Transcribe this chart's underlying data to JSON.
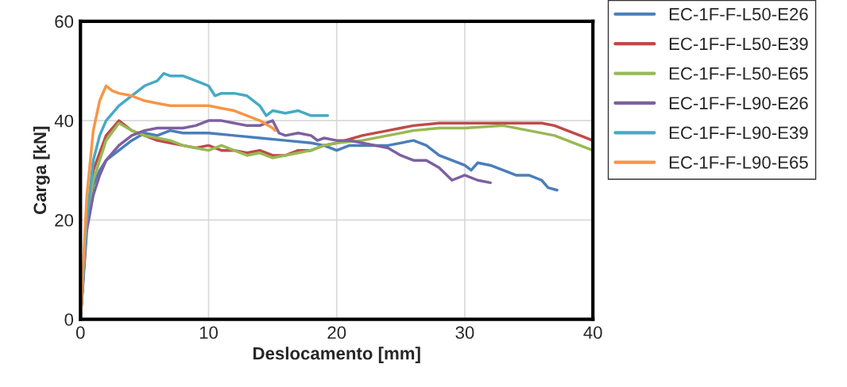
{
  "chart_data": {
    "type": "line",
    "xlabel": "Deslocamento [mm]",
    "ylabel": "Carga [kN]",
    "xlim": [
      0,
      40
    ],
    "ylim": [
      0,
      60
    ],
    "xticks": [
      0,
      10,
      20,
      30,
      40
    ],
    "yticks": [
      0,
      20,
      40,
      60
    ],
    "grid": true,
    "legend": "right",
    "marker": "none",
    "line_style": "solid",
    "series": [
      {
        "name": "EC-1F-F-L50-E26",
        "color": "#4a7ebb",
        "x": [
          0,
          0.5,
          1,
          1.5,
          2,
          3,
          4,
          5,
          6,
          7,
          8,
          10,
          12,
          14,
          16,
          18,
          19,
          20,
          21,
          22,
          24,
          26,
          27,
          28,
          29,
          30,
          30.5,
          31,
          32,
          34,
          35,
          36,
          36.5,
          37.2
        ],
        "values": [
          0,
          20,
          27,
          30,
          32,
          34,
          36,
          37.5,
          37,
          38,
          37.5,
          37.5,
          37,
          36.5,
          36,
          35.5,
          35,
          34,
          35,
          35,
          35,
          36,
          35,
          33,
          32,
          31,
          30,
          31.5,
          31,
          29,
          29,
          28,
          26.5,
          26
        ]
      },
      {
        "name": "EC-1F-F-L50-E39",
        "color": "#be4b48",
        "x": [
          0,
          0.5,
          1,
          2,
          3,
          4,
          5,
          6,
          7,
          8,
          9,
          10,
          11,
          12,
          13,
          14,
          15,
          16,
          17,
          18,
          19,
          20,
          22,
          24,
          26,
          28,
          30,
          32,
          34,
          36,
          37,
          38,
          40
        ],
        "values": [
          0,
          20,
          30,
          37,
          40,
          38,
          37,
          36,
          35.5,
          35,
          34.5,
          35,
          34,
          34,
          33.5,
          34,
          33,
          33,
          34,
          34,
          35,
          35.5,
          37,
          38,
          39,
          39.5,
          39.5,
          39.5,
          39.5,
          39.5,
          39,
          38,
          36
        ]
      },
      {
        "name": "EC-1F-F-L50-E65",
        "color": "#98b954",
        "x": [
          0,
          0.5,
          1,
          2,
          3,
          4,
          5,
          6,
          7,
          8,
          9,
          10,
          11,
          12,
          13,
          14,
          15,
          16,
          17,
          18,
          19,
          20,
          22,
          24,
          26,
          28,
          30,
          33,
          35,
          37,
          38,
          39,
          40
        ],
        "values": [
          0,
          20,
          28,
          36,
          39.5,
          38,
          37,
          36.5,
          36,
          35,
          34.5,
          34,
          35,
          34,
          33,
          33.5,
          32.5,
          33,
          33.5,
          34,
          35,
          35.5,
          36,
          37,
          38,
          38.5,
          38.5,
          39,
          38,
          37,
          36,
          35,
          34
        ]
      },
      {
        "name": "EC-1F-F-L90-E26",
        "color": "#7d60a0",
        "x": [
          0,
          0.5,
          1,
          1.5,
          2,
          3,
          4,
          5,
          6,
          8,
          9,
          10,
          11,
          12,
          13,
          14,
          15,
          15.5,
          16,
          17,
          18,
          18.5,
          19,
          20,
          21,
          22,
          23,
          24,
          25,
          26,
          27,
          28,
          29,
          30,
          31,
          32
        ],
        "values": [
          0,
          18,
          25,
          29,
          32,
          35,
          37,
          38,
          38.5,
          38.5,
          39,
          40,
          40,
          39.5,
          39,
          39,
          40,
          37.5,
          37,
          37.5,
          37,
          36,
          36.5,
          36,
          36,
          35.5,
          35,
          34.5,
          33,
          32,
          32,
          30.5,
          28,
          29,
          28,
          27.5
        ]
      },
      {
        "name": "EC-1F-F-L90-E39",
        "color": "#46aac5",
        "x": [
          0,
          0.5,
          1,
          1.5,
          2,
          3,
          4,
          5,
          6,
          6.5,
          7,
          8,
          9,
          10,
          10.5,
          11,
          12,
          13,
          14,
          14.5,
          15,
          16,
          17,
          18,
          19,
          19.3
        ],
        "values": [
          0,
          20,
          32,
          37,
          40,
          43,
          45,
          47,
          48,
          49.5,
          49,
          49,
          48,
          47,
          45,
          45.5,
          45.5,
          45,
          43,
          41,
          42,
          41.5,
          42,
          41,
          41,
          41
        ]
      },
      {
        "name": "EC-1F-F-L90-E65",
        "color": "#f79646",
        "x": [
          0,
          0.5,
          1,
          1.5,
          2,
          2.5,
          3,
          4,
          5,
          6,
          7,
          8,
          9,
          10,
          11,
          12,
          13,
          14,
          15,
          15.2
        ],
        "values": [
          0,
          25,
          38,
          44,
          47,
          46,
          45.5,
          45,
          44,
          43.5,
          43,
          43,
          43,
          43,
          42.5,
          42,
          41,
          40,
          38.5,
          38
        ]
      }
    ]
  }
}
